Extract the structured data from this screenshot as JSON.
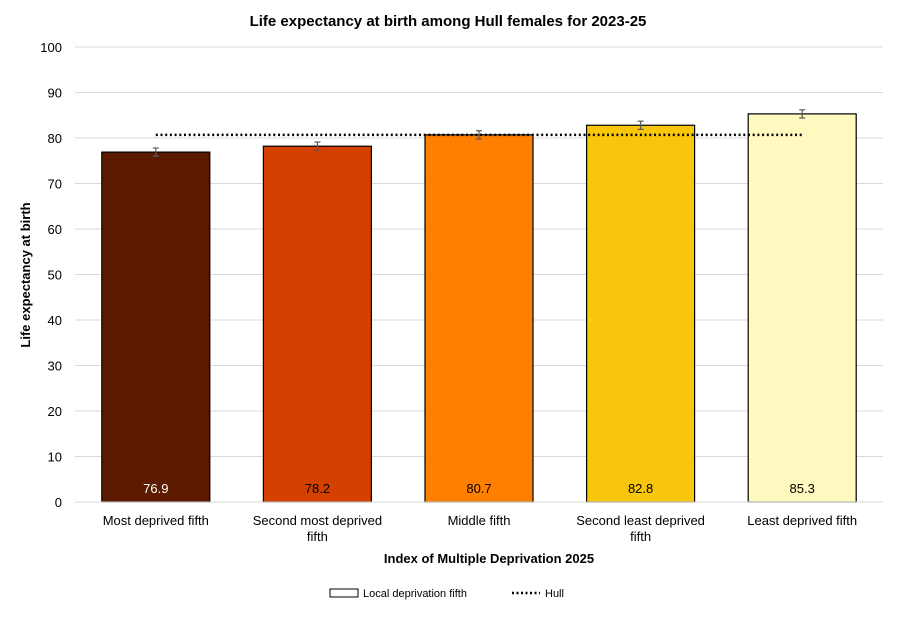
{
  "chart_data": {
    "type": "bar",
    "title": "Life expectancy at birth among Hull females for 2023-25",
    "xlabel": "Index of Multiple Deprivation 2025",
    "ylabel": "Life expectancy at birth",
    "ylim": [
      0,
      100
    ],
    "yticks": [
      0,
      10,
      20,
      30,
      40,
      50,
      60,
      70,
      80,
      90,
      100
    ],
    "categories": [
      [
        "Most deprived fifth"
      ],
      [
        "Second most deprived",
        "fifth"
      ],
      [
        "Middle fifth"
      ],
      [
        "Second least deprived",
        "fifth"
      ],
      [
        "Least deprived fifth"
      ]
    ],
    "values": [
      76.9,
      78.2,
      80.7,
      82.8,
      85.3
    ],
    "value_labels": [
      "76.9",
      "78.2",
      "80.7",
      "82.8",
      "85.3"
    ],
    "error": [
      0.9,
      0.9,
      0.9,
      0.9,
      0.9
    ],
    "colors": [
      "#5c1a00",
      "#d44000",
      "#ff8000",
      "#f8c60a",
      "#fff8bf"
    ],
    "label_colors": [
      "#ffffff",
      "#000000",
      "#000000",
      "#000000",
      "#000000"
    ],
    "reference": {
      "name": "Hull",
      "value": 80.7
    },
    "grid": true,
    "legend": {
      "placement": "bottom",
      "entries": [
        "Local deprivation fifth",
        "Hull"
      ]
    }
  }
}
